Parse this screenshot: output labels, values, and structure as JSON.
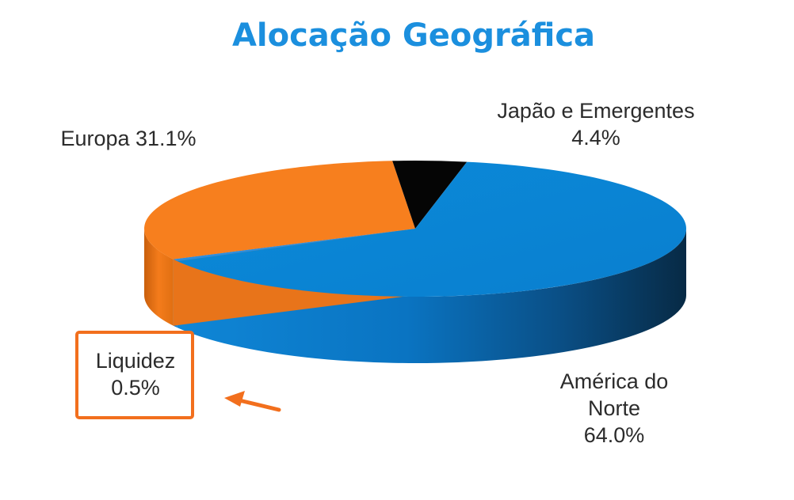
{
  "chart_data": {
    "type": "pie",
    "title": "Alocação Geográfica",
    "categories": [
      "América do Norte",
      "Europa",
      "Japão e Emergentes",
      "Liquidez"
    ],
    "values": [
      64.0,
      31.1,
      4.4,
      0.5
    ],
    "unit": "%",
    "labels": [
      {
        "lines": [
          "América do",
          "Norte",
          "64.0%"
        ]
      },
      {
        "lines": [
          "Europa  31.1%"
        ]
      },
      {
        "lines": [
          "Japão  e Emergentes",
          "4.4%"
        ]
      },
      {
        "lines": [
          "Liquidez",
          "0.5%"
        ]
      }
    ],
    "colors": [
      "#0a86d6",
      "#f77f1e",
      "#050505",
      "#2b8ee0"
    ],
    "three_d": true,
    "highlight": {
      "category": "Liquidez",
      "box_color": "#f26f1d",
      "arrow": true
    },
    "title_color": "#1b8fde"
  }
}
